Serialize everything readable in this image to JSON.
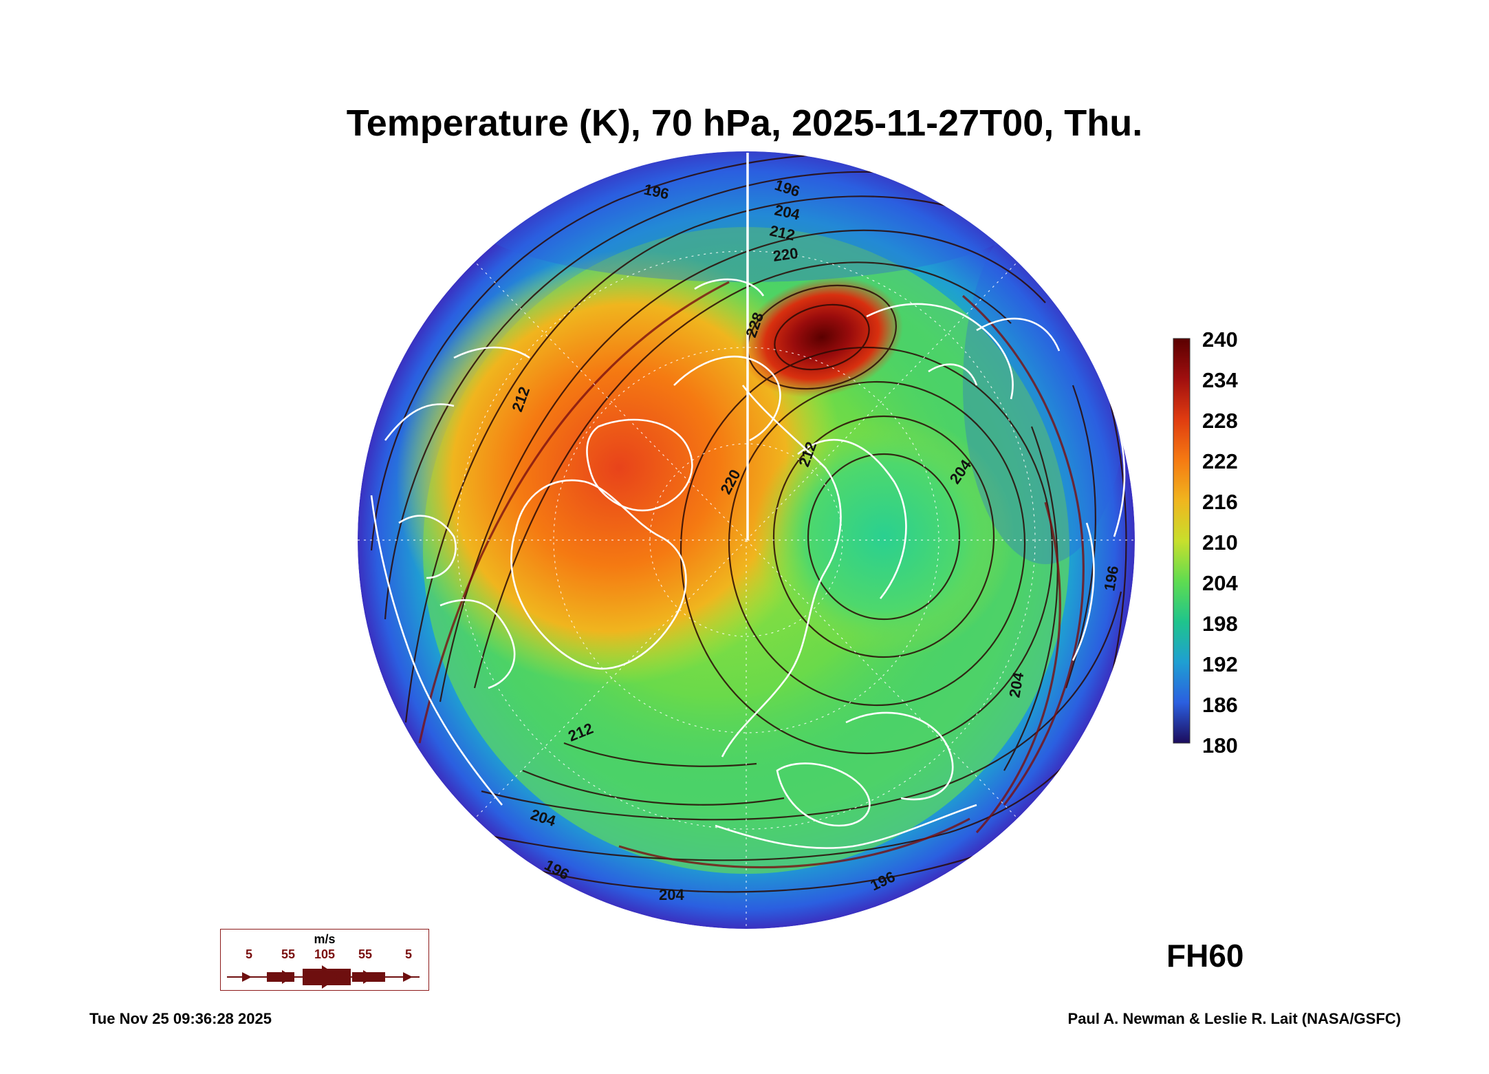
{
  "title": "Temperature (K), 70 hPa, 2025-11-27T00, Thu.",
  "colorbar": {
    "labels": [
      "240",
      "234",
      "228",
      "222",
      "216",
      "210",
      "204",
      "198",
      "192",
      "186",
      "180"
    ],
    "colors": [
      "#7a0000",
      "#b01010",
      "#e03c10",
      "#f57a12",
      "#f0b51e",
      "#c8df2c",
      "#5fdc50",
      "#1fc48c",
      "#1f9fd2",
      "#2b5fe0",
      "#3b1aa8",
      "#1c0c5c"
    ]
  },
  "contour_labels": [
    "196",
    "196",
    "204",
    "212",
    "220",
    "228",
    "212",
    "220",
    "212",
    "204",
    "196",
    "204",
    "196",
    "212",
    "204",
    "196",
    "204"
  ],
  "wind_legend": {
    "unit": "m/s",
    "labels": [
      "5",
      "55",
      "105",
      "55",
      "5"
    ],
    "color": "#6e0f0f"
  },
  "forecast_hour": "FH60",
  "timestamp": "Tue Nov 25 09:36:28 2025",
  "credit": "Paul A. Newman & Leslie R. Lait (NASA/GSFC)"
}
